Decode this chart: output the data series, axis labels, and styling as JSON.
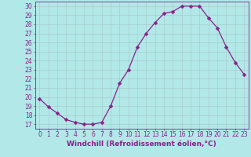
{
  "x": [
    0,
    1,
    2,
    3,
    4,
    5,
    6,
    7,
    8,
    9,
    10,
    11,
    12,
    13,
    14,
    15,
    16,
    17,
    18,
    19,
    20,
    21,
    22,
    23
  ],
  "y": [
    19.8,
    18.9,
    18.2,
    17.5,
    17.2,
    17.0,
    17.0,
    17.2,
    19.0,
    21.5,
    23.0,
    25.5,
    27.0,
    28.2,
    29.2,
    29.4,
    30.0,
    30.0,
    30.0,
    28.7,
    27.6,
    25.5,
    23.8,
    22.5
  ],
  "line_color": "#882288",
  "marker": "D",
  "marker_size": 2.5,
  "bg_color": "#b2e8e8",
  "grid_color": "#aacccc",
  "xlabel": "Windchill (Refroidissement éolien,°C)",
  "ylabel_ticks": [
    17,
    18,
    19,
    20,
    21,
    22,
    23,
    24,
    25,
    26,
    27,
    28,
    29,
    30
  ],
  "xlim": [
    -0.5,
    23.5
  ],
  "ylim": [
    16.5,
    30.5
  ],
  "xticks": [
    0,
    1,
    2,
    3,
    4,
    5,
    6,
    7,
    8,
    9,
    10,
    11,
    12,
    13,
    14,
    15,
    16,
    17,
    18,
    19,
    20,
    21,
    22,
    23
  ],
  "label_color": "#882288",
  "tick_color": "#882288",
  "tick_font_size": 5.5,
  "xlabel_font_size": 6.5
}
